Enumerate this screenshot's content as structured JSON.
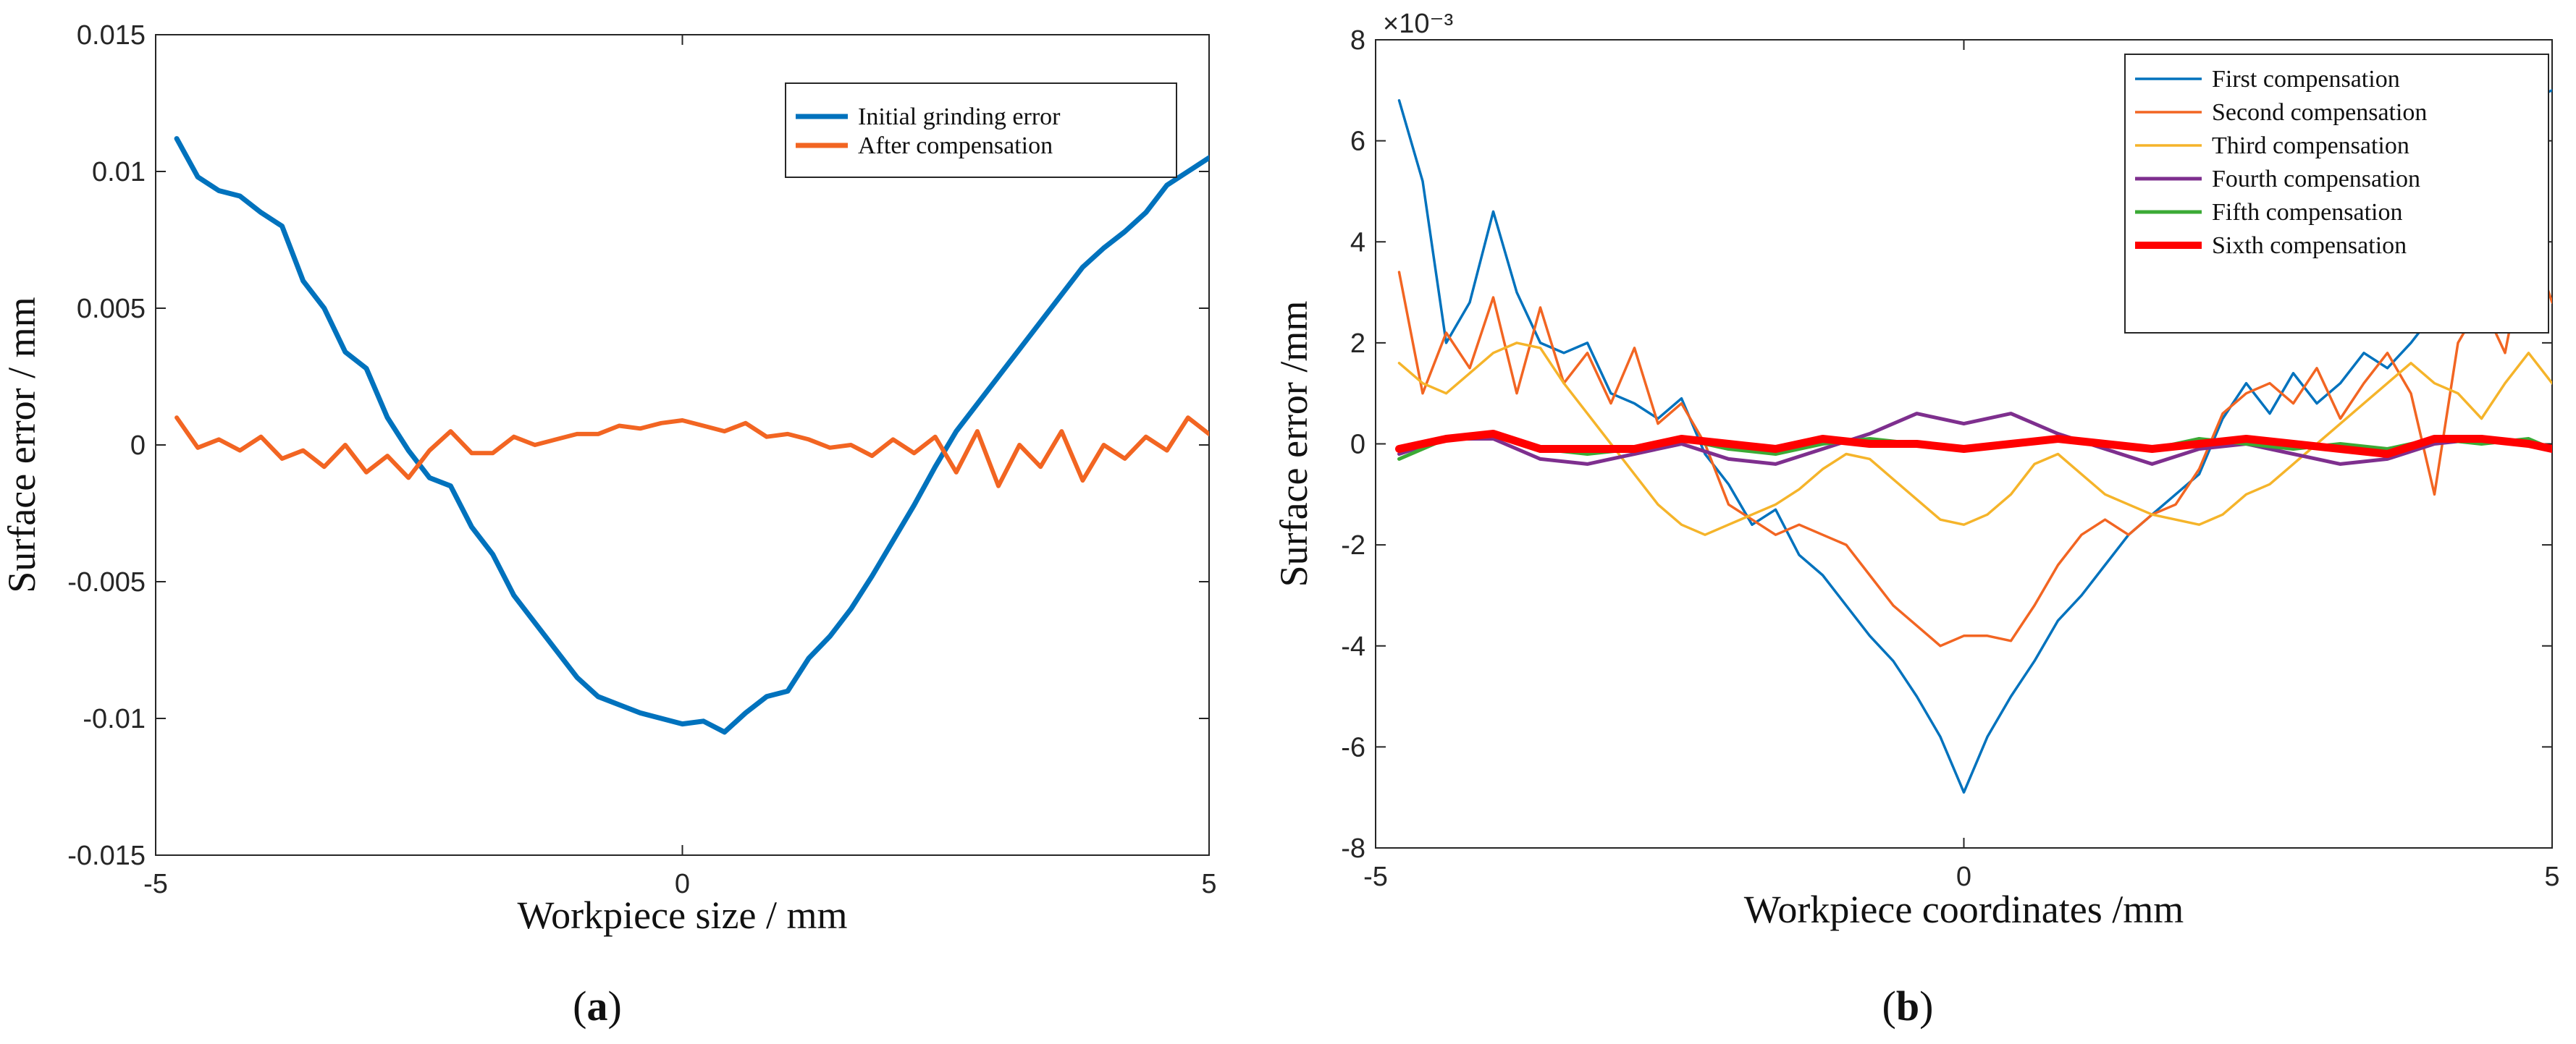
{
  "chart_data": [
    {
      "type": "line",
      "panel_label": "a",
      "xlabel": "Workpiece size / mm",
      "ylabel": "Surface error / mm",
      "xlim": [
        -5,
        5
      ],
      "ylim": [
        -0.015,
        0.015
      ],
      "xticks": [
        "-5",
        "0",
        "5"
      ],
      "yticks": [
        "-0.015",
        "-0.01",
        "-0.005",
        "0",
        "0.005",
        "0.01",
        "0.015"
      ],
      "legend_position": "top-right",
      "grid": false,
      "series": [
        {
          "name": "Initial grinding error",
          "color": "#0072BD",
          "x": [
            -4.8,
            -4.6,
            -4.4,
            -4.2,
            -4.0,
            -3.8,
            -3.6,
            -3.4,
            -3.2,
            -3.0,
            -2.8,
            -2.6,
            -2.4,
            -2.2,
            -2.0,
            -1.8,
            -1.6,
            -1.4,
            -1.2,
            -1.0,
            -0.8,
            -0.6,
            -0.4,
            -0.2,
            0.0,
            0.2,
            0.4,
            0.6,
            0.8,
            1.0,
            1.2,
            1.4,
            1.6,
            1.8,
            2.0,
            2.2,
            2.4,
            2.6,
            2.8,
            3.0,
            3.2,
            3.4,
            3.6,
            3.8,
            4.0,
            4.2,
            4.4,
            4.6,
            4.8,
            5.0
          ],
          "y": [
            0.0112,
            0.0098,
            0.0093,
            0.0091,
            0.0085,
            0.008,
            0.006,
            0.005,
            0.0034,
            0.0028,
            0.001,
            -0.0002,
            -0.0012,
            -0.0015,
            -0.003,
            -0.004,
            -0.0055,
            -0.0065,
            -0.0075,
            -0.0085,
            -0.0092,
            -0.0095,
            -0.0098,
            -0.01,
            -0.0102,
            -0.0101,
            -0.0105,
            -0.0098,
            -0.0092,
            -0.009,
            -0.0078,
            -0.007,
            -0.006,
            -0.0048,
            -0.0035,
            -0.0022,
            -0.0008,
            0.0005,
            0.0015,
            0.0025,
            0.0035,
            0.0045,
            0.0055,
            0.0065,
            0.0072,
            0.0078,
            0.0085,
            0.0095,
            0.01,
            0.0105
          ]
        },
        {
          "name": "After compensation",
          "color": "#F26522",
          "x": [
            -4.8,
            -4.6,
            -4.4,
            -4.2,
            -4.0,
            -3.8,
            -3.6,
            -3.4,
            -3.2,
            -3.0,
            -2.8,
            -2.6,
            -2.4,
            -2.2,
            -2.0,
            -1.8,
            -1.6,
            -1.4,
            -1.2,
            -1.0,
            -0.8,
            -0.6,
            -0.4,
            -0.2,
            0.0,
            0.2,
            0.4,
            0.6,
            0.8,
            1.0,
            1.2,
            1.4,
            1.6,
            1.8,
            2.0,
            2.2,
            2.4,
            2.6,
            2.8,
            3.0,
            3.2,
            3.4,
            3.6,
            3.8,
            4.0,
            4.2,
            4.4,
            4.6,
            4.8,
            5.0
          ],
          "y": [
            0.001,
            -0.0001,
            0.0002,
            -0.0002,
            0.0003,
            -0.0005,
            -0.0002,
            -0.0008,
            0.0,
            -0.001,
            -0.0004,
            -0.0012,
            -0.0002,
            0.0005,
            -0.0003,
            -0.0003,
            0.0003,
            0.0,
            0.0002,
            0.0004,
            0.0004,
            0.0007,
            0.0006,
            0.0008,
            0.0009,
            0.0007,
            0.0005,
            0.0008,
            0.0003,
            0.0004,
            0.0002,
            -0.0001,
            0.0,
            -0.0004,
            0.0002,
            -0.0003,
            0.0003,
            -0.001,
            0.0005,
            -0.0015,
            0.0,
            -0.0008,
            0.0005,
            -0.0013,
            0.0,
            -0.0005,
            0.0003,
            -0.0002,
            0.001,
            0.0004
          ]
        }
      ]
    },
    {
      "type": "line",
      "panel_label": "b",
      "xlabel": "Workpiece coordinates /mm",
      "ylabel": "Surface error /mm",
      "exponent_label": "×10⁻³",
      "xlim": [
        -5,
        5
      ],
      "ylim": [
        -8,
        8
      ],
      "xticks": [
        "-5",
        "0",
        "5"
      ],
      "yticks": [
        "-8",
        "-6",
        "-4",
        "-2",
        "0",
        "2",
        "4",
        "6",
        "8"
      ],
      "legend_position": "top-right",
      "grid": false,
      "series": [
        {
          "name": "First compensation",
          "color": "#0072BD",
          "x": [
            -4.8,
            -4.6,
            -4.4,
            -4.2,
            -4.0,
            -3.8,
            -3.6,
            -3.4,
            -3.2,
            -3.0,
            -2.8,
            -2.6,
            -2.4,
            -2.2,
            -2.0,
            -1.8,
            -1.6,
            -1.4,
            -1.2,
            -1.0,
            -0.8,
            -0.6,
            -0.4,
            -0.2,
            0.0,
            0.2,
            0.4,
            0.6,
            0.8,
            1.0,
            1.2,
            1.4,
            1.6,
            1.8,
            2.0,
            2.2,
            2.4,
            2.6,
            2.8,
            3.0,
            3.2,
            3.4,
            3.6,
            3.8,
            4.0,
            4.2,
            4.4,
            4.6,
            4.8,
            5.0
          ],
          "y": [
            6.8,
            5.2,
            2.0,
            2.8,
            4.6,
            3.0,
            2.0,
            1.8,
            2.0,
            1.0,
            0.8,
            0.5,
            0.9,
            -0.2,
            -0.8,
            -1.6,
            -1.3,
            -2.2,
            -2.6,
            -3.2,
            -3.8,
            -4.3,
            -5.0,
            -5.8,
            -6.9,
            -5.8,
            -5.0,
            -4.3,
            -3.5,
            -3.0,
            -2.4,
            -1.8,
            -1.4,
            -1.0,
            -0.6,
            0.5,
            1.2,
            0.6,
            1.4,
            0.8,
            1.2,
            1.8,
            1.5,
            2.0,
            2.6,
            3.0,
            3.8,
            5.5,
            6.8,
            7.0
          ]
        },
        {
          "name": "Second compensation",
          "color": "#F26522",
          "x": [
            -4.8,
            -4.6,
            -4.4,
            -4.2,
            -4.0,
            -3.8,
            -3.6,
            -3.4,
            -3.2,
            -3.0,
            -2.8,
            -2.6,
            -2.4,
            -2.2,
            -2.0,
            -1.8,
            -1.6,
            -1.4,
            -1.2,
            -1.0,
            -0.8,
            -0.6,
            -0.4,
            -0.2,
            0.0,
            0.2,
            0.4,
            0.6,
            0.8,
            1.0,
            1.2,
            1.4,
            1.6,
            1.8,
            2.0,
            2.2,
            2.4,
            2.6,
            2.8,
            3.0,
            3.2,
            3.4,
            3.6,
            3.8,
            4.0,
            4.2,
            4.4,
            4.6,
            4.8,
            5.0
          ],
          "y": [
            3.4,
            1.0,
            2.2,
            1.5,
            2.9,
            1.0,
            2.7,
            1.2,
            1.8,
            0.8,
            1.9,
            0.4,
            0.8,
            0.0,
            -1.2,
            -1.5,
            -1.8,
            -1.6,
            -1.8,
            -2.0,
            -2.6,
            -3.2,
            -3.6,
            -4.0,
            -3.8,
            -3.8,
            -3.9,
            -3.2,
            -2.4,
            -1.8,
            -1.5,
            -1.8,
            -1.4,
            -1.2,
            -0.5,
            0.6,
            1.0,
            1.2,
            0.8,
            1.5,
            0.5,
            1.2,
            1.8,
            1.0,
            -1.0,
            2.0,
            2.8,
            1.8,
            4.2,
            2.8
          ]
        },
        {
          "name": "Third compensation",
          "color": "#F5B42A",
          "x": [
            -4.8,
            -4.6,
            -4.4,
            -4.2,
            -4.0,
            -3.8,
            -3.6,
            -3.4,
            -3.2,
            -3.0,
            -2.8,
            -2.6,
            -2.4,
            -2.2,
            -2.0,
            -1.8,
            -1.6,
            -1.4,
            -1.2,
            -1.0,
            -0.8,
            -0.6,
            -0.4,
            -0.2,
            0.0,
            0.2,
            0.4,
            0.6,
            0.8,
            1.0,
            1.2,
            1.4,
            1.6,
            1.8,
            2.0,
            2.2,
            2.4,
            2.6,
            2.8,
            3.0,
            3.2,
            3.4,
            3.6,
            3.8,
            4.0,
            4.2,
            4.4,
            4.6,
            4.8,
            5.0
          ],
          "y": [
            1.6,
            1.2,
            1.0,
            1.4,
            1.8,
            2.0,
            1.9,
            1.2,
            0.6,
            0.0,
            -0.6,
            -1.2,
            -1.6,
            -1.8,
            -1.6,
            -1.4,
            -1.2,
            -0.9,
            -0.5,
            -0.2,
            -0.3,
            -0.7,
            -1.1,
            -1.5,
            -1.6,
            -1.4,
            -1.0,
            -0.4,
            -0.2,
            -0.6,
            -1.0,
            -1.2,
            -1.4,
            -1.5,
            -1.6,
            -1.4,
            -1.0,
            -0.8,
            -0.4,
            0.0,
            0.4,
            0.8,
            1.2,
            1.6,
            1.2,
            1.0,
            0.5,
            1.2,
            1.8,
            1.2
          ]
        },
        {
          "name": "Fourth compensation",
          "color": "#7E2F8E",
          "x": [
            -4.8,
            -4.4,
            -4.0,
            -3.6,
            -3.2,
            -2.8,
            -2.4,
            -2.0,
            -1.6,
            -1.2,
            -0.8,
            -0.4,
            0.0,
            0.4,
            0.8,
            1.2,
            1.6,
            2.0,
            2.4,
            2.8,
            3.2,
            3.6,
            4.0,
            4.4,
            4.8,
            5.0
          ],
          "y": [
            -0.2,
            0.1,
            0.1,
            -0.3,
            -0.4,
            -0.2,
            0.0,
            -0.3,
            -0.4,
            -0.1,
            0.2,
            0.6,
            0.4,
            0.6,
            0.2,
            -0.1,
            -0.4,
            -0.1,
            0.0,
            -0.2,
            -0.4,
            -0.3,
            0.0,
            0.1,
            0.0,
            -0.1
          ]
        },
        {
          "name": "Fifth compensation",
          "color": "#3BAA35",
          "x": [
            -4.8,
            -4.4,
            -4.0,
            -3.6,
            -3.2,
            -2.8,
            -2.4,
            -2.0,
            -1.6,
            -1.2,
            -0.8,
            -0.4,
            0.0,
            0.4,
            0.8,
            1.2,
            1.6,
            2.0,
            2.4,
            2.8,
            3.2,
            3.6,
            4.0,
            4.4,
            4.8,
            5.0
          ],
          "y": [
            -0.3,
            0.1,
            0.2,
            -0.1,
            -0.2,
            -0.1,
            0.1,
            -0.1,
            -0.2,
            0.0,
            0.1,
            0.0,
            -0.1,
            0.0,
            0.1,
            0.0,
            -0.1,
            0.1,
            0.0,
            -0.1,
            0.0,
            -0.1,
            0.1,
            0.0,
            0.1,
            -0.1
          ]
        },
        {
          "name": "Sixth compensation",
          "color": "#FF0000",
          "x": [
            -4.8,
            -4.4,
            -4.0,
            -3.6,
            -3.2,
            -2.8,
            -2.4,
            -2.0,
            -1.6,
            -1.2,
            -0.8,
            -0.4,
            0.0,
            0.4,
            0.8,
            1.2,
            1.6,
            2.0,
            2.4,
            2.8,
            3.2,
            3.6,
            4.0,
            4.4,
            4.8,
            5.0
          ],
          "y": [
            -0.1,
            0.1,
            0.2,
            -0.1,
            -0.1,
            -0.1,
            0.1,
            0.0,
            -0.1,
            0.1,
            0.0,
            0.0,
            -0.1,
            0.0,
            0.1,
            0.0,
            -0.1,
            0.0,
            0.1,
            0.0,
            -0.1,
            -0.2,
            0.1,
            0.1,
            0.0,
            -0.1
          ]
        }
      ]
    }
  ]
}
